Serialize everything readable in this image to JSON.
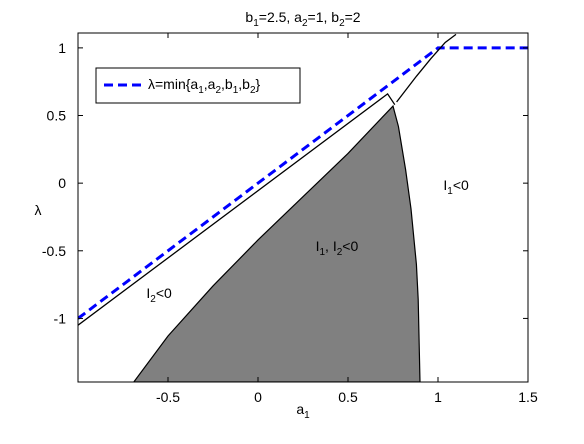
{
  "chart_data": {
    "type": "line",
    "title": [
      "b",
      "1",
      "=2.5, a",
      "2",
      "=1, b",
      "2",
      "=2"
    ],
    "xlabel": [
      "a",
      "1"
    ],
    "ylabel": [
      "λ"
    ],
    "xlim": [
      -1,
      1.5
    ],
    "ylim": [
      -1.47,
      1.11
    ],
    "xticks": [
      -0.5,
      0,
      0.5,
      1,
      1.5
    ],
    "yticks": [
      -1,
      -0.5,
      0,
      0.5,
      1
    ],
    "series": [
      {
        "name": [
          "λ=min{a",
          "1",
          ",a",
          "2",
          ",b",
          "1",
          ",b",
          "2",
          "}"
        ],
        "color": "#0000ff",
        "dashed": true,
        "x": [
          -1,
          1,
          1.5
        ],
        "values": [
          -1,
          1,
          1
        ]
      },
      {
        "color": "#000000",
        "dashed": false,
        "x": [
          -1,
          0.72,
          0.76,
          null,
          0.77,
          0.88,
          0.96,
          1.0,
          1.04,
          1.1
        ],
        "values": [
          -1.05,
          0.66,
          0.58,
          null,
          0.6,
          0.79,
          0.92,
          0.98,
          1.04,
          1.1
        ]
      }
    ],
    "regions": [
      {
        "color": "#808080",
        "x": [
          -0.69,
          -0.5,
          -0.25,
          0,
          0.25,
          0.5,
          0.75,
          0.78,
          0.82,
          0.85,
          0.88,
          0.89,
          0.9
        ],
        "values": [
          -1.47,
          -1.13,
          -0.76,
          -0.42,
          -0.1,
          0.22,
          0.57,
          0.42,
          0.1,
          -0.19,
          -0.6,
          -0.86,
          -1.47
        ]
      }
    ],
    "annotations": [
      {
        "text": [
          "I",
          "2",
          "<0"
        ],
        "x": -0.62,
        "y": -0.85
      },
      {
        "text": [
          "I",
          "1",
          ", I",
          "2",
          "<0"
        ],
        "x": 0.32,
        "y": -0.5
      },
      {
        "text": [
          "I",
          "1",
          "<0"
        ],
        "x": 1.03,
        "y": -0.05
      }
    ],
    "legend": "upper left"
  }
}
